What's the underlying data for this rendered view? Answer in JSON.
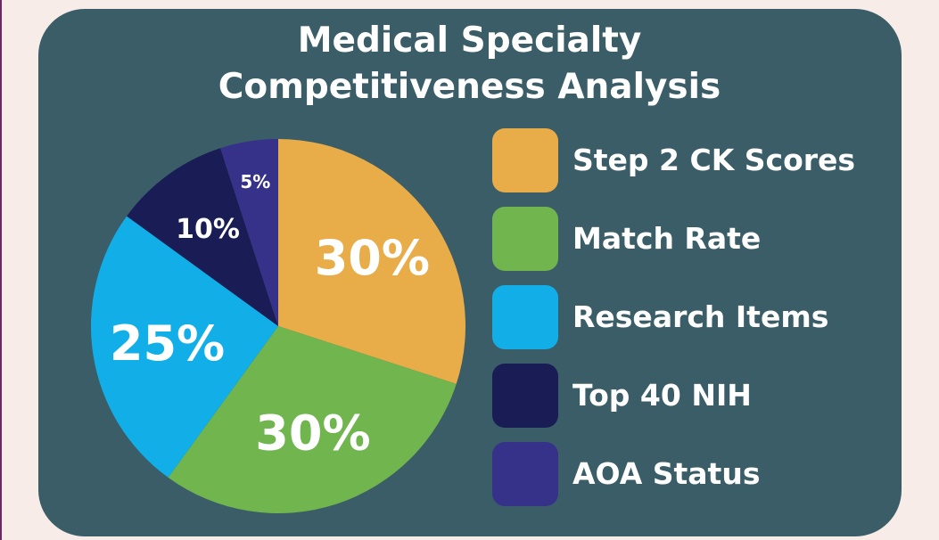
{
  "chart_data": {
    "type": "pie",
    "title": [
      "Medical Specialty",
      "Competitiveness Analysis"
    ],
    "slices": [
      {
        "name": "Step 2 CK Scores",
        "value": 30,
        "label": "30%",
        "color": "#e8ac48"
      },
      {
        "name": "Match Rate",
        "value": 30,
        "label": "30%",
        "color": "#70b54e"
      },
      {
        "name": "Research Items",
        "value": 25,
        "label": "25%",
        "color": "#12aee8"
      },
      {
        "name": "Top 40 NIH",
        "value": 10,
        "label": "10%",
        "color": "#1a1d55"
      },
      {
        "name": "AOA Status",
        "value": 5,
        "label": "5%",
        "color": "#36328a"
      }
    ],
    "legend_position": "right"
  },
  "colors": {
    "background": "#f7ece8",
    "card": "#3a5d68",
    "text": "#ffffff"
  }
}
